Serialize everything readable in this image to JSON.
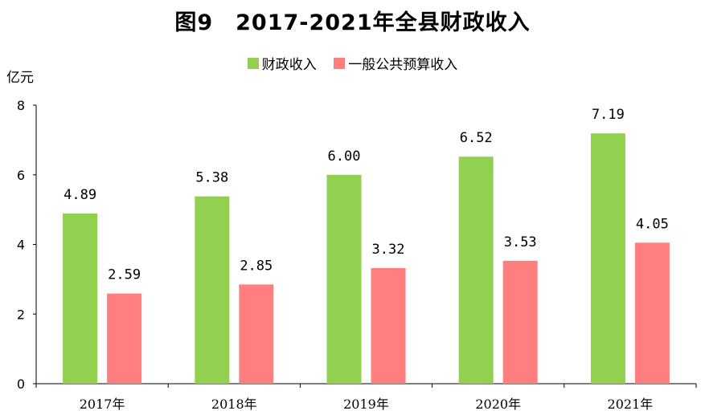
{
  "chart_data": {
    "type": "bar",
    "title": "图9　2017-2021年全县财政收入",
    "ylabel": "亿元",
    "xlabel": "",
    "categories": [
      "2017年",
      "2018年",
      "2019年",
      "2020年",
      "2021年"
    ],
    "series": [
      {
        "name": "财政收入",
        "color": "#92d050",
        "values": [
          4.89,
          5.38,
          6.0,
          6.52,
          7.19
        ],
        "labels": [
          "4.89",
          "5.38",
          "6.00",
          "6.52",
          "7.19"
        ]
      },
      {
        "name": "一般公共预算收入",
        "color": "#ff7f7f",
        "values": [
          2.59,
          2.85,
          3.32,
          3.53,
          4.05
        ],
        "labels": [
          "2.59",
          "2.85",
          "3.32",
          "3.53",
          "4.05"
        ]
      }
    ],
    "ylim": [
      0,
      8
    ],
    "yticks": [
      "0",
      "2",
      "4",
      "6",
      "8"
    ],
    "grid": false,
    "legend_position": "top-center"
  }
}
